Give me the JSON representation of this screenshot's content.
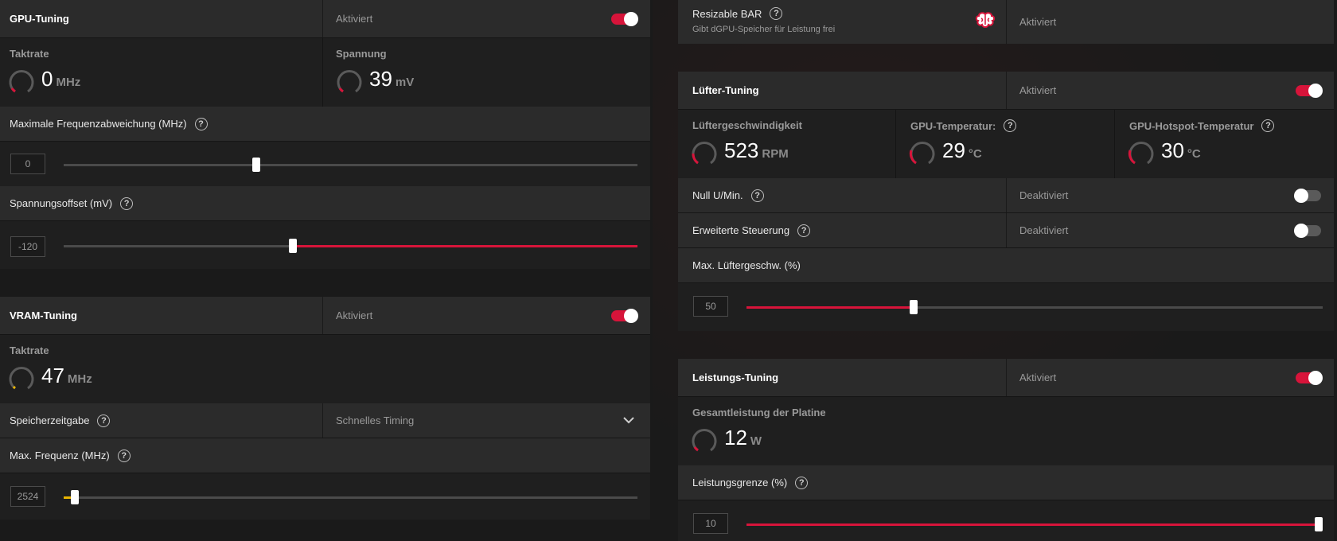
{
  "colors": {
    "accent": "#d7143a",
    "amber": "#e8b400",
    "panel": "#252525",
    "header": "#2b2b2b"
  },
  "gpu_tuning": {
    "title": "GPU-Tuning",
    "state": "Aktiviert",
    "toggle_on": true,
    "clock": {
      "label": "Taktrate",
      "value": "0",
      "unit": "MHz"
    },
    "voltage": {
      "label": "Spannung",
      "value": "39",
      "unit": "mV"
    },
    "max_freq_offset": {
      "label": "Maximale Frequenzabweichung (MHz)",
      "value": "0",
      "fraction": 0.335
    },
    "voltage_offset": {
      "label": "Spannungsoffset (mV)",
      "value": "-120",
      "fraction": 0.4
    }
  },
  "vram_tuning": {
    "title": "VRAM-Tuning",
    "state": "Aktiviert",
    "toggle_on": true,
    "clock": {
      "label": "Taktrate",
      "value": "47",
      "unit": "MHz"
    },
    "memory_timing": {
      "label": "Speicherzeitgabe",
      "value": "Schnelles Timing"
    },
    "max_freq": {
      "label": "Max. Frequenz (MHz)",
      "value": "2524",
      "fraction": 0.02
    }
  },
  "resizable_bar": {
    "title": "Resizable BAR",
    "subtitle": "Gibt dGPU-Speicher für Leistung frei",
    "state": "Aktiviert",
    "icon": "brain-icon"
  },
  "fan_tuning": {
    "title": "Lüfter-Tuning",
    "state": "Aktiviert",
    "toggle_on": true,
    "fan_speed": {
      "label": "Lüftergeschwindigkeit",
      "value": "523",
      "unit": "RPM"
    },
    "gpu_temp": {
      "label": "GPU-Temperatur:",
      "value": "29",
      "unit": "°C"
    },
    "hotspot_temp": {
      "label": "GPU-Hotspot-Temperatur",
      "value": "30",
      "unit": "°C"
    },
    "zero_rpm": {
      "label": "Null U/Min.",
      "state": "Deaktiviert",
      "toggle_on": false
    },
    "advanced_control": {
      "label": "Erweiterte Steuerung",
      "state": "Deaktiviert",
      "toggle_on": false
    },
    "max_fan_speed": {
      "label": "Max. Lüftergeschw. (%)",
      "value": "50",
      "fraction": 0.29
    }
  },
  "power_tuning": {
    "title": "Leistungs-Tuning",
    "state": "Aktiviert",
    "toggle_on": true,
    "board_power": {
      "label": "Gesamtleistung der Platine",
      "value": "12",
      "unit": "W"
    },
    "power_limit": {
      "label": "Leistungsgrenze (%)",
      "value": "10",
      "fraction": 1.0
    }
  }
}
